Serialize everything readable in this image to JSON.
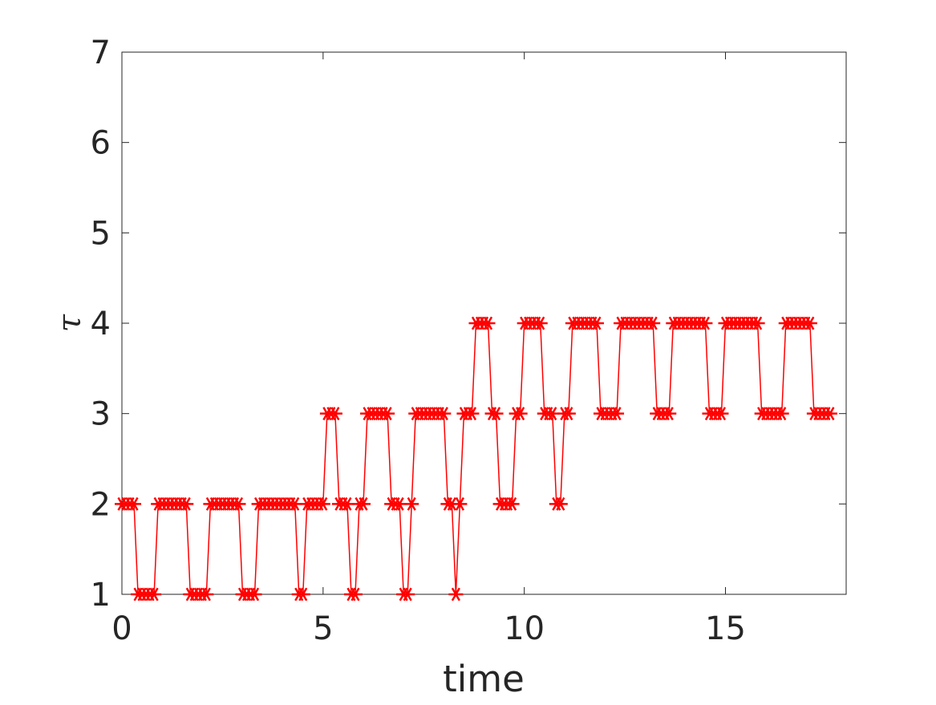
{
  "chart_data": {
    "type": "line",
    "xlabel": "time",
    "ylabel": "τ",
    "xlim": [
      0,
      18
    ],
    "ylim": [
      1,
      7
    ],
    "xticks": [
      0,
      5,
      10,
      15
    ],
    "yticks": [
      1,
      2,
      3,
      4,
      5,
      6,
      7
    ],
    "x": [
      0,
      0.1,
      0.2,
      0.3,
      0.4,
      0.5,
      0.6,
      0.7,
      0.8,
      0.9,
      1,
      1.1,
      1.2,
      1.3,
      1.4,
      1.5,
      1.6,
      1.7,
      1.8,
      1.9,
      2,
      2.1,
      2.2,
      2.3,
      2.4,
      2.5,
      2.6,
      2.7,
      2.8,
      2.9,
      3,
      3.1,
      3.2,
      3.3,
      3.4,
      3.5,
      3.6,
      3.7,
      3.8,
      3.9,
      4,
      4.1,
      4.2,
      4.3,
      4.4,
      4.5,
      4.6,
      4.7,
      4.8,
      4.9,
      5,
      5.1,
      5.2,
      5.3,
      5.4,
      5.5,
      5.6,
      5.7,
      5.8,
      5.9,
      6,
      6.1,
      6.2,
      6.3,
      6.4,
      6.5,
      6.6,
      6.7,
      6.8,
      6.9,
      7,
      7.1,
      7.2,
      7.3,
      7.4,
      7.5,
      7.6,
      7.7,
      7.8,
      7.9,
      8,
      8.1,
      8.2,
      8.3,
      8.4,
      8.5,
      8.6,
      8.7,
      8.8,
      8.9,
      9,
      9.1,
      9.2,
      9.3,
      9.4,
      9.5,
      9.6,
      9.7,
      9.8,
      9.9,
      10,
      10.1,
      10.2,
      10.3,
      10.4,
      10.5,
      10.6,
      10.7,
      10.8,
      10.9,
      11,
      11.1,
      11.2,
      11.3,
      11.4,
      11.5,
      11.6,
      11.7,
      11.8,
      11.9,
      12,
      12.1,
      12.2,
      12.3,
      12.4,
      12.5,
      12.6,
      12.7,
      12.8,
      12.9,
      13,
      13.1,
      13.2,
      13.3,
      13.4,
      13.5,
      13.6,
      13.7,
      13.8,
      13.9,
      14,
      14.1,
      14.2,
      14.3,
      14.4,
      14.5,
      14.6,
      14.7,
      14.8,
      14.9,
      15,
      15.1,
      15.2,
      15.3,
      15.4,
      15.5,
      15.6,
      15.7,
      15.8,
      15.9,
      16,
      16.1,
      16.2,
      16.3,
      16.4,
      16.5,
      16.6,
      16.7,
      16.8,
      16.9,
      17,
      17.1,
      17.2,
      17.3,
      17.4,
      17.5,
      17.6
    ],
    "series": [
      {
        "color": "#ff0000",
        "values": [
          2,
          2,
          2,
          2,
          1,
          1,
          1,
          1,
          1,
          2,
          2,
          2,
          2,
          2,
          2,
          2,
          2,
          1,
          1,
          1,
          1,
          1,
          2,
          2,
          2,
          2,
          2,
          2,
          2,
          2,
          1,
          1,
          1,
          1,
          2,
          2,
          2,
          2,
          2,
          2,
          2,
          2,
          2,
          2,
          1,
          1,
          2,
          2,
          2,
          2,
          2,
          3,
          3,
          3,
          2,
          2,
          2,
          1,
          1,
          2,
          2,
          3,
          3,
          3,
          3,
          3,
          3,
          2,
          2,
          2,
          1,
          1,
          2,
          3,
          3,
          3,
          3,
          3,
          3,
          3,
          3,
          2,
          2,
          1,
          2,
          3,
          3,
          3,
          4,
          4,
          4,
          4,
          3,
          3,
          2,
          2,
          2,
          2,
          3,
          3,
          4,
          4,
          4,
          4,
          4,
          3,
          3,
          3,
          2,
          2,
          3,
          3,
          4,
          4,
          4,
          4,
          4,
          4,
          4,
          3,
          3,
          3,
          3,
          3,
          4,
          4,
          4,
          4,
          4,
          4,
          4,
          4,
          4,
          3,
          3,
          3,
          3,
          4,
          4,
          4,
          4,
          4,
          4,
          4,
          4,
          4,
          3,
          3,
          3,
          3,
          4,
          4,
          4,
          4,
          4,
          4,
          4,
          4,
          4,
          3,
          3,
          3,
          3,
          3,
          3,
          4,
          4,
          4,
          4,
          4,
          4,
          4,
          3,
          3,
          3,
          3,
          3
        ]
      }
    ]
  }
}
